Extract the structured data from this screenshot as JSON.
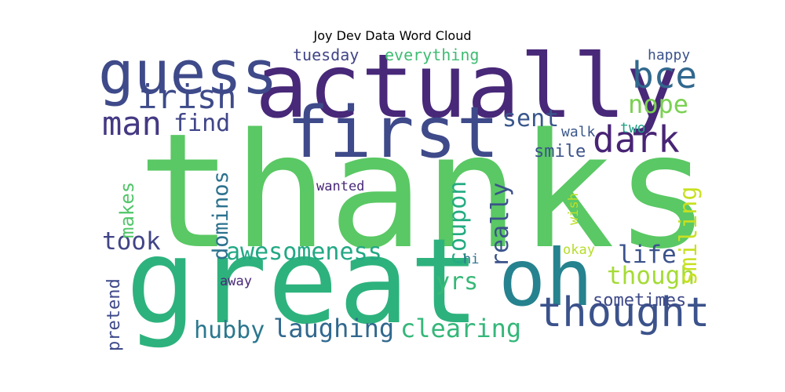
{
  "chart_data": {
    "type": "wordcloud",
    "title": "Joy Dev Data Word Cloud",
    "words": [
      {
        "text": "thanks",
        "weight": 1.0,
        "color": "#5ac864"
      },
      {
        "text": "great",
        "weight": 0.78,
        "color": "#2db27d"
      },
      {
        "text": "actually",
        "weight": 0.58,
        "color": "#482878"
      },
      {
        "text": "oh",
        "weight": 0.52,
        "color": "#26828e"
      },
      {
        "text": "first",
        "weight": 0.48,
        "color": "#3e4a89"
      },
      {
        "text": "guess",
        "weight": 0.4,
        "color": "#3e4a89"
      },
      {
        "text": "thought",
        "weight": 0.28,
        "color": "#3b528b"
      },
      {
        "text": "dark",
        "weight": 0.24,
        "color": "#482475"
      },
      {
        "text": "bce",
        "weight": 0.24,
        "color": "#31688e"
      },
      {
        "text": "man",
        "weight": 0.22,
        "color": "#443983"
      },
      {
        "text": "irish",
        "weight": 0.22,
        "color": "#3e4a89"
      },
      {
        "text": "laughing",
        "weight": 0.18,
        "color": "#31688e"
      },
      {
        "text": "clearing",
        "weight": 0.18,
        "color": "#35b779"
      },
      {
        "text": "nope",
        "weight": 0.18,
        "color": "#7ad151"
      },
      {
        "text": "coupon",
        "weight": 0.17,
        "color": "#25ab82"
      },
      {
        "text": "awesomeness",
        "weight": 0.16,
        "color": "#22a884"
      },
      {
        "text": "hubby",
        "weight": 0.16,
        "color": "#2a788e"
      },
      {
        "text": "took",
        "weight": 0.16,
        "color": "#414487"
      },
      {
        "text": "though",
        "weight": 0.16,
        "color": "#a5db36"
      },
      {
        "text": "life",
        "weight": 0.16,
        "color": "#3b528b"
      },
      {
        "text": "really",
        "weight": 0.16,
        "color": "#3b528b"
      },
      {
        "text": "smiling",
        "weight": 0.16,
        "color": "#c8e020"
      },
      {
        "text": "find",
        "weight": 0.15,
        "color": "#404688"
      },
      {
        "text": "yrs",
        "weight": 0.15,
        "color": "#37b878"
      },
      {
        "text": "sent",
        "weight": 0.14,
        "color": "#39568c"
      },
      {
        "text": "dominos",
        "weight": 0.14,
        "color": "#2c728e"
      },
      {
        "text": "makes",
        "weight": 0.13,
        "color": "#52c569"
      },
      {
        "text": "pretend",
        "weight": 0.11,
        "color": "#3e4a89"
      },
      {
        "text": "smile",
        "weight": 0.11,
        "color": "#3b528b"
      },
      {
        "text": "sometimes",
        "weight": 0.11,
        "color": "#3e4a89"
      },
      {
        "text": "everything",
        "weight": 0.1,
        "color": "#3fbc73"
      },
      {
        "text": "tuesday",
        "weight": 0.1,
        "color": "#414487"
      },
      {
        "text": "happy",
        "weight": 0.1,
        "color": "#3b528b"
      },
      {
        "text": "two",
        "weight": 0.1,
        "color": "#1fa188"
      },
      {
        "text": "walk",
        "weight": 0.1,
        "color": "#39568c"
      },
      {
        "text": "wanted",
        "weight": 0.09,
        "color": "#482878"
      },
      {
        "text": "away",
        "weight": 0.09,
        "color": "#482878"
      },
      {
        "text": "hi",
        "weight": 0.09,
        "color": "#2c728e"
      },
      {
        "text": "okay",
        "weight": 0.09,
        "color": "#b5de2b"
      },
      {
        "text": "wish",
        "weight": 0.09,
        "color": "#bddf26"
      }
    ]
  }
}
